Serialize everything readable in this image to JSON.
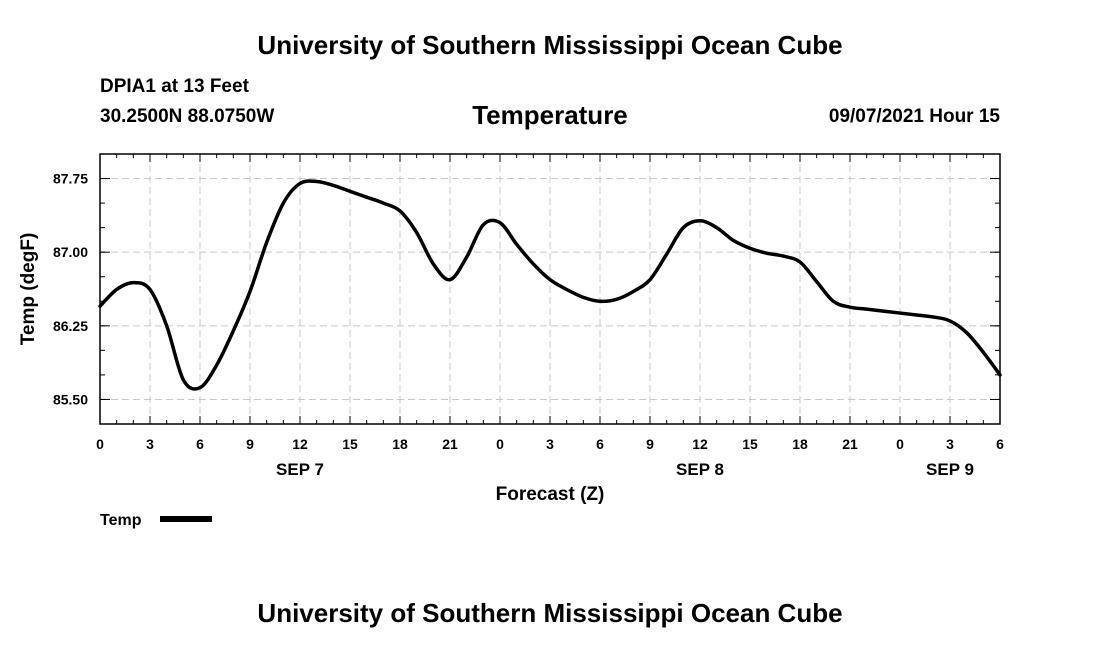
{
  "header": {
    "title": "University of Southern Mississippi Ocean Cube"
  },
  "station": {
    "name": "DPIA1 at 13 Feet",
    "coords": "30.2500N  88.0750W"
  },
  "forecast_time": "09/07/2021 Hour 15",
  "footer": {
    "title": "University of Southern Mississippi Ocean Cube"
  },
  "chart_data": {
    "type": "line",
    "title": "Temperature",
    "xlabel": "Forecast (Z)",
    "ylabel": "Temp (degF)",
    "xlim": [
      0,
      54
    ],
    "ylim": [
      85.25,
      88.0
    ],
    "y_ticks": [
      85.5,
      86.25,
      87.0,
      87.75
    ],
    "y_tick_labels": [
      "85.50",
      "86.25",
      "87.00",
      "87.75"
    ],
    "x_ticks": [
      0,
      3,
      6,
      9,
      12,
      15,
      18,
      21,
      24,
      27,
      30,
      33,
      36,
      39,
      42,
      45,
      48,
      51,
      54
    ],
    "x_tick_labels": [
      "0",
      "3",
      "6",
      "9",
      "12",
      "15",
      "18",
      "21",
      "0",
      "3",
      "6",
      "9",
      "12",
      "15",
      "18",
      "21",
      "0",
      "3",
      "6"
    ],
    "date_labels": [
      {
        "x": 12,
        "label": "SEP 7"
      },
      {
        "x": 36,
        "label": "SEP 8"
      },
      {
        "x": 51,
        "label": "SEP 9"
      }
    ],
    "grid": true,
    "legend": {
      "position": "bottom-left",
      "entries": [
        "Temp"
      ]
    },
    "series": [
      {
        "name": "Temp",
        "x": [
          0,
          1,
          2,
          3,
          4,
          5,
          6,
          7,
          8,
          9,
          10,
          11,
          12,
          13,
          14,
          15,
          16,
          17,
          18,
          19,
          20,
          21,
          22,
          23,
          24,
          25,
          26,
          27,
          28,
          29,
          30,
          31,
          32,
          33,
          34,
          35,
          36,
          37,
          38,
          39,
          40,
          41,
          42,
          43,
          44,
          45,
          46,
          47,
          48,
          49,
          50,
          51,
          52,
          53,
          54
        ],
        "y": [
          86.45,
          86.62,
          86.69,
          86.62,
          86.25,
          85.7,
          85.62,
          85.85,
          86.2,
          86.6,
          87.1,
          87.5,
          87.7,
          87.72,
          87.68,
          87.62,
          87.56,
          87.5,
          87.42,
          87.2,
          86.88,
          86.72,
          86.95,
          87.28,
          87.3,
          87.08,
          86.88,
          86.72,
          86.62,
          86.54,
          86.5,
          86.52,
          86.6,
          86.72,
          86.98,
          87.25,
          87.32,
          87.25,
          87.12,
          87.04,
          86.99,
          86.96,
          86.9,
          86.7,
          86.5,
          86.44,
          86.42,
          86.4,
          86.38,
          86.36,
          86.34,
          86.3,
          86.18,
          85.98,
          85.75
        ]
      }
    ]
  }
}
